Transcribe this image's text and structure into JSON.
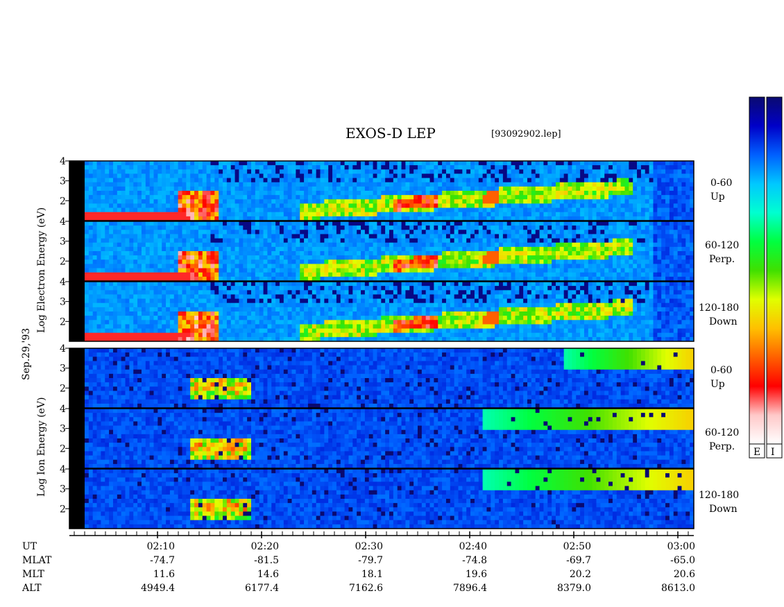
{
  "header": {
    "title": "EXOS-D LEP",
    "file": "[93092902.lep]"
  },
  "date_label": "Sep.29,'93",
  "electron_group": {
    "ylabel": "Log   Electron  Energy (eV)",
    "panels": [
      {
        "angle": "0-60",
        "dir": "Up"
      },
      {
        "angle": "60-120",
        "dir": "Perp."
      },
      {
        "angle": "120-180",
        "dir": "Down"
      }
    ]
  },
  "ion_group": {
    "ylabel": "Log   Ion  Energy (eV)",
    "panels": [
      {
        "angle": "0-60",
        "dir": "Up"
      },
      {
        "angle": "60-120",
        "dir": "Perp."
      },
      {
        "angle": "120-180",
        "dir": "Down"
      }
    ]
  },
  "colorbar": {
    "labels": [
      "E",
      "I"
    ],
    "stops": [
      "#0a0a70",
      "#0000c8",
      "#0060ff",
      "#00c8ff",
      "#00ffd0",
      "#00ff40",
      "#40e000",
      "#e0ff00",
      "#ffc000",
      "#ff6000",
      "#ff0000",
      "#ffc8c8",
      "#ffffff"
    ]
  },
  "footer": {
    "rows": [
      {
        "name": "UT",
        "values": [
          "02:10",
          "02:20",
          "02:30",
          "02:40",
          "02:50",
          "03:00"
        ]
      },
      {
        "name": "MLAT",
        "values": [
          "-74.7",
          "-81.5",
          "-79.7",
          "-74.8",
          "-69.7",
          "-65.0"
        ]
      },
      {
        "name": "MLT",
        "values": [
          "11.6",
          "14.6",
          "18.1",
          "19.6",
          "20.2",
          "20.6"
        ]
      },
      {
        "name": "ALT",
        "values": [
          "4949.4",
          "6177.4",
          "7162.6",
          "7896.4",
          "8379.0",
          "8613.0"
        ]
      }
    ]
  },
  "chart_data": {
    "type": "heatmap",
    "title": "EXOS-D LEP",
    "subtitle": "[93092902.lep]",
    "xlabel": "UT",
    "x_ticks": [
      "02:10",
      "02:20",
      "02:30",
      "02:40",
      "02:50",
      "03:00"
    ],
    "xlim": [
      "02:02",
      "03:01"
    ],
    "ylim": [
      1,
      4
    ],
    "y_ticks": [
      2,
      3,
      4
    ],
    "panels": [
      {
        "species": "Electron",
        "angle": "0-60",
        "dir": "Up"
      },
      {
        "species": "Electron",
        "angle": "60-120",
        "dir": "Perp."
      },
      {
        "species": "Electron",
        "angle": "120-180",
        "dir": "Down"
      },
      {
        "species": "Ion",
        "angle": "0-60",
        "dir": "Up"
      },
      {
        "species": "Ion",
        "angle": "60-120",
        "dir": "Perp."
      },
      {
        "species": "Ion",
        "angle": "120-180",
        "dir": "Down"
      }
    ],
    "colorbar_labels": [
      "E",
      "I"
    ]
  }
}
